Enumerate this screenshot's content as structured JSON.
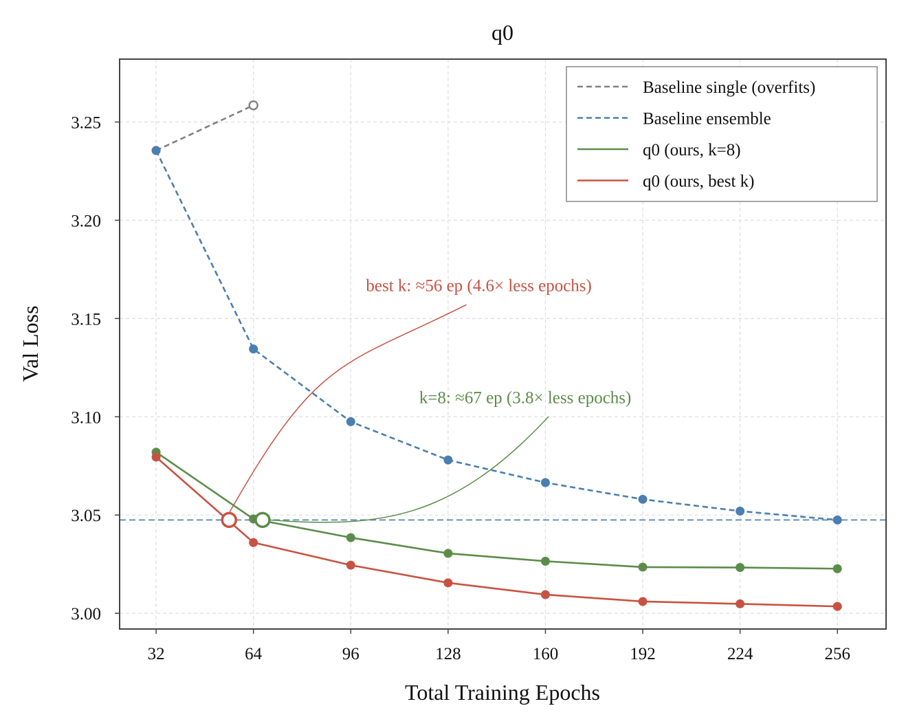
{
  "chart_data": {
    "type": "line",
    "title": "q0",
    "xlabel": "Total Training Epochs",
    "ylabel": "Val Loss",
    "xlim": [
      20,
      272
    ],
    "ylim": [
      2.992,
      3.282
    ],
    "xticks": [
      32,
      64,
      96,
      128,
      160,
      192,
      224,
      256
    ],
    "yticks": [
      3.0,
      3.05,
      3.1,
      3.15,
      3.2,
      3.25
    ],
    "ytick_labels": [
      "3.00",
      "3.05",
      "3.10",
      "3.15",
      "3.20",
      "3.25"
    ],
    "grid": true,
    "legend_position": "top-right",
    "reference_line": {
      "y": 3.0475,
      "color": "#4a7fb0",
      "style": "dashed"
    },
    "series": [
      {
        "name": "Baseline single (overfits)",
        "color": "#808080",
        "style": "dashed",
        "x": [
          32,
          64
        ],
        "y": [
          3.2355,
          3.2585
        ],
        "last_marker_open": true
      },
      {
        "name": "Baseline ensemble",
        "color": "#4a7fb0",
        "style": "dashed",
        "x": [
          32,
          64,
          96,
          128,
          160,
          192,
          224,
          256
        ],
        "y": [
          3.2355,
          3.1345,
          3.0975,
          3.078,
          3.0665,
          3.058,
          3.052,
          3.0475
        ]
      },
      {
        "name": "q0 (ours, k=8)",
        "color": "#5b8c4a",
        "style": "solid",
        "x": [
          32,
          64,
          96,
          128,
          160,
          192,
          224,
          256
        ],
        "y": [
          3.082,
          3.048,
          3.0385,
          3.0305,
          3.0265,
          3.0235,
          3.0233,
          3.0227
        ]
      },
      {
        "name": "q0 (ours, best k)",
        "color": "#c85242",
        "style": "solid",
        "x": [
          32,
          64,
          96,
          128,
          160,
          192,
          224,
          256
        ],
        "y": [
          3.0795,
          3.036,
          3.0245,
          3.0155,
          3.0095,
          3.006,
          3.0048,
          3.0035
        ]
      }
    ],
    "crossings": [
      {
        "series": "q0 (ours, best k)",
        "x": 56,
        "y": 3.0475,
        "color": "#c85242"
      },
      {
        "series": "q0 (ours, k=8)",
        "x": 67,
        "y": 3.0475,
        "color": "#5b8c4a"
      }
    ],
    "annotations": [
      {
        "text": "best k:  ≈56 ep (4.6× less epochs)",
        "color": "#c85242",
        "at": {
          "x": 56,
          "y": 3.0475
        },
        "text_pos": {
          "x": 101,
          "y": 3.164
        },
        "arrow_end": {
          "x": 134,
          "y": 3.157
        }
      },
      {
        "text": "k=8:  ≈67 ep (3.8× less epochs)",
        "color": "#5b8c4a",
        "at": {
          "x": 67,
          "y": 3.0475
        },
        "text_pos": {
          "x": 118.5,
          "y": 3.107
        },
        "arrow_end": {
          "x": 161,
          "y": 3.1
        }
      }
    ]
  }
}
